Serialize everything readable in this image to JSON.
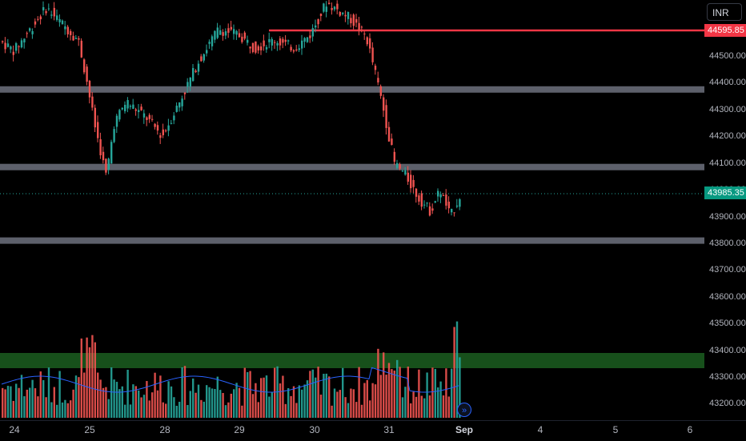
{
  "currency": "INR",
  "price_scale": {
    "ticks": [
      "44500.00",
      "44400.00",
      "44300.00",
      "44200.00",
      "44100.00",
      "44000.00",
      "43900.00",
      "43800.00",
      "43700.00",
      "43600.00",
      "43500.00",
      "43400.00",
      "43300.00",
      "43200.00"
    ],
    "tick_values": [
      44500,
      44400,
      44300,
      44200,
      44100,
      44000,
      43900,
      43800,
      43700,
      43600,
      43500,
      43400,
      43300,
      43200
    ]
  },
  "time_axis": [
    "24",
    "25",
    "28",
    "29",
    "30",
    "31",
    "Sep",
    "4",
    "5",
    "6"
  ],
  "time_axis_bold": [
    "Sep"
  ],
  "tags": {
    "resistance": "44595.85",
    "last_price": "43985.35"
  },
  "levels": {
    "resistance_line": 44595.85,
    "horizontal_zones": [
      44375,
      44085,
      43810
    ],
    "last_price": 43985.35
  },
  "colors": {
    "up": "#26a69a",
    "down": "#ef5350",
    "resistance": "#f23645",
    "zone": "#5d606b",
    "volume_zone": "#1b5e20",
    "ma": "#2962ff",
    "background": "#000000"
  },
  "icons": {
    "goto_realtime": "double-chevron-right-icon"
  }
}
